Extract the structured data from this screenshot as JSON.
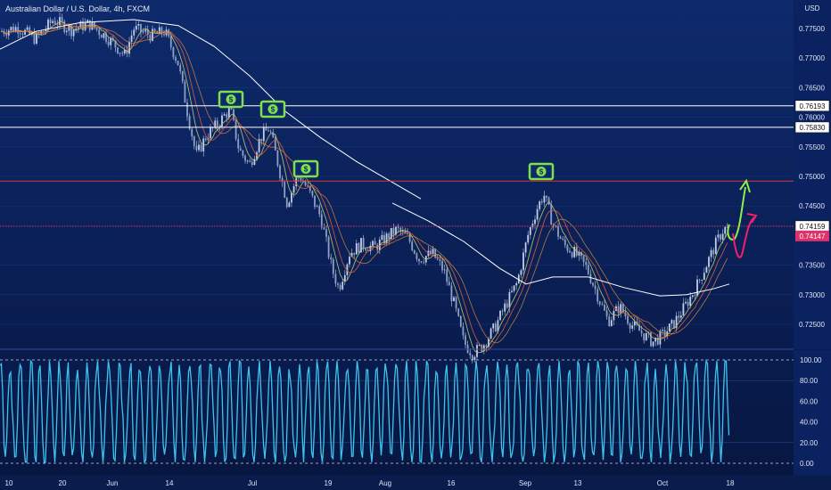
{
  "header": {
    "title": "Australian Dollar / U.S. Dollar, 4h, FXCM",
    "currency": "USD"
  },
  "colors": {
    "background": "#0c1f4f",
    "candle_body": "#c8d2e8",
    "candle_bear": "#d03a3a",
    "candle_bull": "#7ad070",
    "ma_slow": "#ffffff",
    "ma_mid": "#e05a3a",
    "ma_fast": "#b9c96a",
    "ma_orange": "#e0913a",
    "level_line": "#ffffff",
    "red_level": "#d43a3a",
    "pink_level": "#e0316b",
    "oscillator": "#3cc4f0",
    "green_arrow": "#8ef04a",
    "pink_arrow": "#f0206a",
    "dollar_icon": "#7ee04a"
  },
  "price_axis": {
    "ticks": [
      "0.77500",
      "0.77000",
      "0.76500",
      "0.76000",
      "0.75500",
      "0.75000",
      "0.74500",
      "0.73500",
      "0.73000",
      "0.72500"
    ]
  },
  "levels": [
    {
      "label": "0.76193",
      "price": 0.76193,
      "style": "white-solid"
    },
    {
      "label": "0.75830",
      "price": 0.7583,
      "style": "white-solid"
    },
    {
      "label": "",
      "price": 0.7492,
      "style": "red-solid"
    },
    {
      "label": "0.74159",
      "price": 0.74159,
      "style": "pink-dotted"
    }
  ],
  "current_price_label": "0.74147",
  "oscillator_axis": {
    "ticks": [
      "100.00",
      "80.00",
      "60.00",
      "40.00",
      "20.00",
      "0.00"
    ]
  },
  "time_axis": {
    "labels": [
      "10",
      "20",
      "Jun",
      "14",
      "Jul",
      "19",
      "Aug",
      "16",
      "Sep",
      "13",
      "Oct",
      "18"
    ]
  },
  "annotations": {
    "dollar_icons": [
      "$",
      "$",
      "$",
      "$"
    ],
    "arrows": [
      "bullish-projection",
      "bearish-projection"
    ]
  }
}
